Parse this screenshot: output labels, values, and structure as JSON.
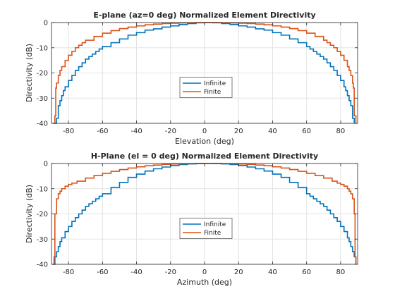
{
  "colors": {
    "series_0": "#0072BD",
    "series_1": "#D95319",
    "grid": "#e3e3e3",
    "axis": "#262626"
  },
  "chart_data": [
    {
      "type": "line",
      "title": "E-plane (az=0 deg) Normalized Element Directivity",
      "xlabel": "Elevation (deg)",
      "ylabel": "Directivity (dB)",
      "xlim": [
        -90,
        90
      ],
      "ylim": [
        -40,
        0
      ],
      "xticks": [
        -80,
        -60,
        -40,
        -20,
        0,
        20,
        40,
        60,
        80
      ],
      "yticks": [
        -40,
        -30,
        -20,
        -10,
        0
      ],
      "xtick_labels": [
        "-80",
        "-60",
        "-40",
        "-20",
        "0",
        "20",
        "40",
        "60",
        "80"
      ],
      "ytick_labels": [
        "-40",
        "-30",
        "-20",
        "-10",
        "0"
      ],
      "grid": true,
      "legend_position": "center",
      "step": true,
      "series": [
        {
          "name": "Infinite",
          "x": [
            -88,
            -87,
            -86,
            -85,
            -84,
            -83,
            -82,
            -80,
            -78,
            -76,
            -74,
            -72,
            -70,
            -68,
            -66,
            -64,
            -62,
            -60,
            -55,
            -50,
            -45,
            -40,
            -35,
            -30,
            -25,
            -20,
            -15,
            -10,
            -5,
            0,
            5,
            10,
            15,
            20,
            25,
            30,
            35,
            40,
            45,
            50,
            55,
            60,
            62,
            64,
            66,
            68,
            70,
            72,
            74,
            76,
            78,
            80,
            82,
            83,
            84,
            85,
            86,
            87,
            88
          ],
          "y": [
            -40,
            -38,
            -33,
            -31,
            -29,
            -27,
            -25.5,
            -23,
            -21,
            -19,
            -17.5,
            -16,
            -14.5,
            -13.5,
            -12.5,
            -11.5,
            -10.5,
            -9.5,
            -8,
            -6.5,
            -5,
            -4,
            -3,
            -2.5,
            -1.8,
            -1.3,
            -0.8,
            -0.4,
            -0.1,
            0,
            -0.1,
            -0.4,
            -0.8,
            -1.3,
            -1.8,
            -2.5,
            -3,
            -4,
            -5,
            -6.5,
            -8,
            -9.5,
            -10.5,
            -11.5,
            -12.5,
            -13.5,
            -14.5,
            -16,
            -17.5,
            -19,
            -21,
            -23,
            -25.5,
            -27,
            -29,
            -31,
            -33,
            -38,
            -40
          ]
        },
        {
          "name": "Finite",
          "x": [
            -89,
            -88,
            -87.5,
            -87,
            -86,
            -85,
            -84,
            -82,
            -80,
            -78,
            -76,
            -74,
            -72,
            -70,
            -65,
            -60,
            -55,
            -50,
            -45,
            -40,
            -35,
            -30,
            -25,
            -20,
            -15,
            -10,
            -5,
            0,
            5,
            10,
            15,
            20,
            25,
            30,
            35,
            40,
            45,
            50,
            55,
            60,
            65,
            70,
            72,
            74,
            76,
            78,
            80,
            82,
            84,
            85,
            86,
            87,
            87.5,
            88,
            89
          ],
          "y": [
            -40,
            -37,
            -26,
            -24,
            -21,
            -19,
            -17.5,
            -15,
            -13,
            -11.5,
            -10,
            -9,
            -8,
            -7,
            -5.5,
            -4.2,
            -3.2,
            -2.4,
            -1.8,
            -1.3,
            -0.9,
            -0.6,
            -0.4,
            -0.25,
            -0.15,
            -0.08,
            -0.02,
            0,
            -0.02,
            -0.08,
            -0.15,
            -0.25,
            -0.4,
            -0.6,
            -0.9,
            -1.3,
            -1.8,
            -2.4,
            -3.2,
            -4.2,
            -5.5,
            -7,
            -8,
            -9,
            -10,
            -11.5,
            -13,
            -15,
            -17.5,
            -19,
            -21,
            -24,
            -26,
            -37,
            -40
          ]
        }
      ]
    },
    {
      "type": "line",
      "title": "H-Plane (el = 0 deg) Normalized Element Directivity",
      "xlabel": "Azimuth (deg)",
      "ylabel": "Directivity (dB)",
      "xlim": [
        -90,
        90
      ],
      "ylim": [
        -40,
        0
      ],
      "xticks": [
        -80,
        -60,
        -40,
        -20,
        0,
        20,
        40,
        60,
        80
      ],
      "yticks": [
        -40,
        -30,
        -20,
        -10,
        0
      ],
      "xtick_labels": [
        "-80",
        "-60",
        "-40",
        "-20",
        "0",
        "20",
        "40",
        "60",
        "80"
      ],
      "ytick_labels": [
        "-40",
        "-30",
        "-20",
        "-10",
        "0"
      ],
      "grid": true,
      "legend_position": "center",
      "step": true,
      "series": [
        {
          "name": "Infinite",
          "x": [
            -89,
            -88,
            -87,
            -86,
            -85,
            -84,
            -82,
            -80,
            -78,
            -76,
            -74,
            -72,
            -70,
            -68,
            -66,
            -64,
            -62,
            -60,
            -55,
            -50,
            -45,
            -40,
            -35,
            -30,
            -25,
            -20,
            -15,
            -10,
            -5,
            0,
            5,
            10,
            15,
            20,
            25,
            30,
            35,
            40,
            45,
            50,
            55,
            60,
            62,
            64,
            66,
            68,
            70,
            72,
            74,
            76,
            78,
            80,
            82,
            84,
            85,
            86,
            87,
            88,
            89
          ],
          "y": [
            -40,
            -37,
            -35,
            -33,
            -31,
            -29.5,
            -27,
            -25,
            -23,
            -21.5,
            -20,
            -18.5,
            -17,
            -16,
            -15,
            -14,
            -13,
            -12,
            -9.5,
            -7.5,
            -5.5,
            -4.2,
            -3,
            -2.1,
            -1.4,
            -0.8,
            -0.4,
            -0.15,
            -0.03,
            0,
            -0.03,
            -0.15,
            -0.4,
            -0.8,
            -1.4,
            -2.1,
            -3,
            -4.2,
            -5.5,
            -7.5,
            -9.5,
            -12,
            -13,
            -14,
            -15,
            -16,
            -17,
            -18.5,
            -20,
            -21.5,
            -23,
            -25,
            -27,
            -29.5,
            -31,
            -33,
            -35,
            -37,
            -40
          ]
        },
        {
          "name": "Finite",
          "x": [
            -89,
            -88.5,
            -88,
            -87,
            -86,
            -85,
            -84,
            -82,
            -80,
            -78,
            -75,
            -70,
            -65,
            -60,
            -55,
            -50,
            -45,
            -40,
            -35,
            -30,
            -25,
            -20,
            -15,
            -10,
            -5,
            0,
            5,
            10,
            15,
            20,
            25,
            30,
            35,
            40,
            45,
            50,
            55,
            60,
            65,
            70,
            75,
            78,
            80,
            82,
            84,
            85,
            86,
            87,
            88,
            88.5,
            89
          ],
          "y": [
            -40,
            -37,
            -20,
            -14,
            -12,
            -11,
            -10,
            -9,
            -8.3,
            -7.8,
            -7,
            -5.8,
            -4.8,
            -3.9,
            -3.1,
            -2.4,
            -1.8,
            -1.3,
            -0.9,
            -0.6,
            -0.35,
            -0.2,
            -0.1,
            -0.04,
            -0.01,
            0,
            -0.01,
            -0.04,
            -0.1,
            -0.2,
            -0.35,
            -0.6,
            -0.9,
            -1.3,
            -1.8,
            -2.4,
            -3.1,
            -3.9,
            -4.8,
            -5.8,
            -7,
            -7.8,
            -8.3,
            -9,
            -10,
            -11,
            -12,
            -14,
            -20,
            -37,
            -40
          ]
        }
      ]
    }
  ]
}
